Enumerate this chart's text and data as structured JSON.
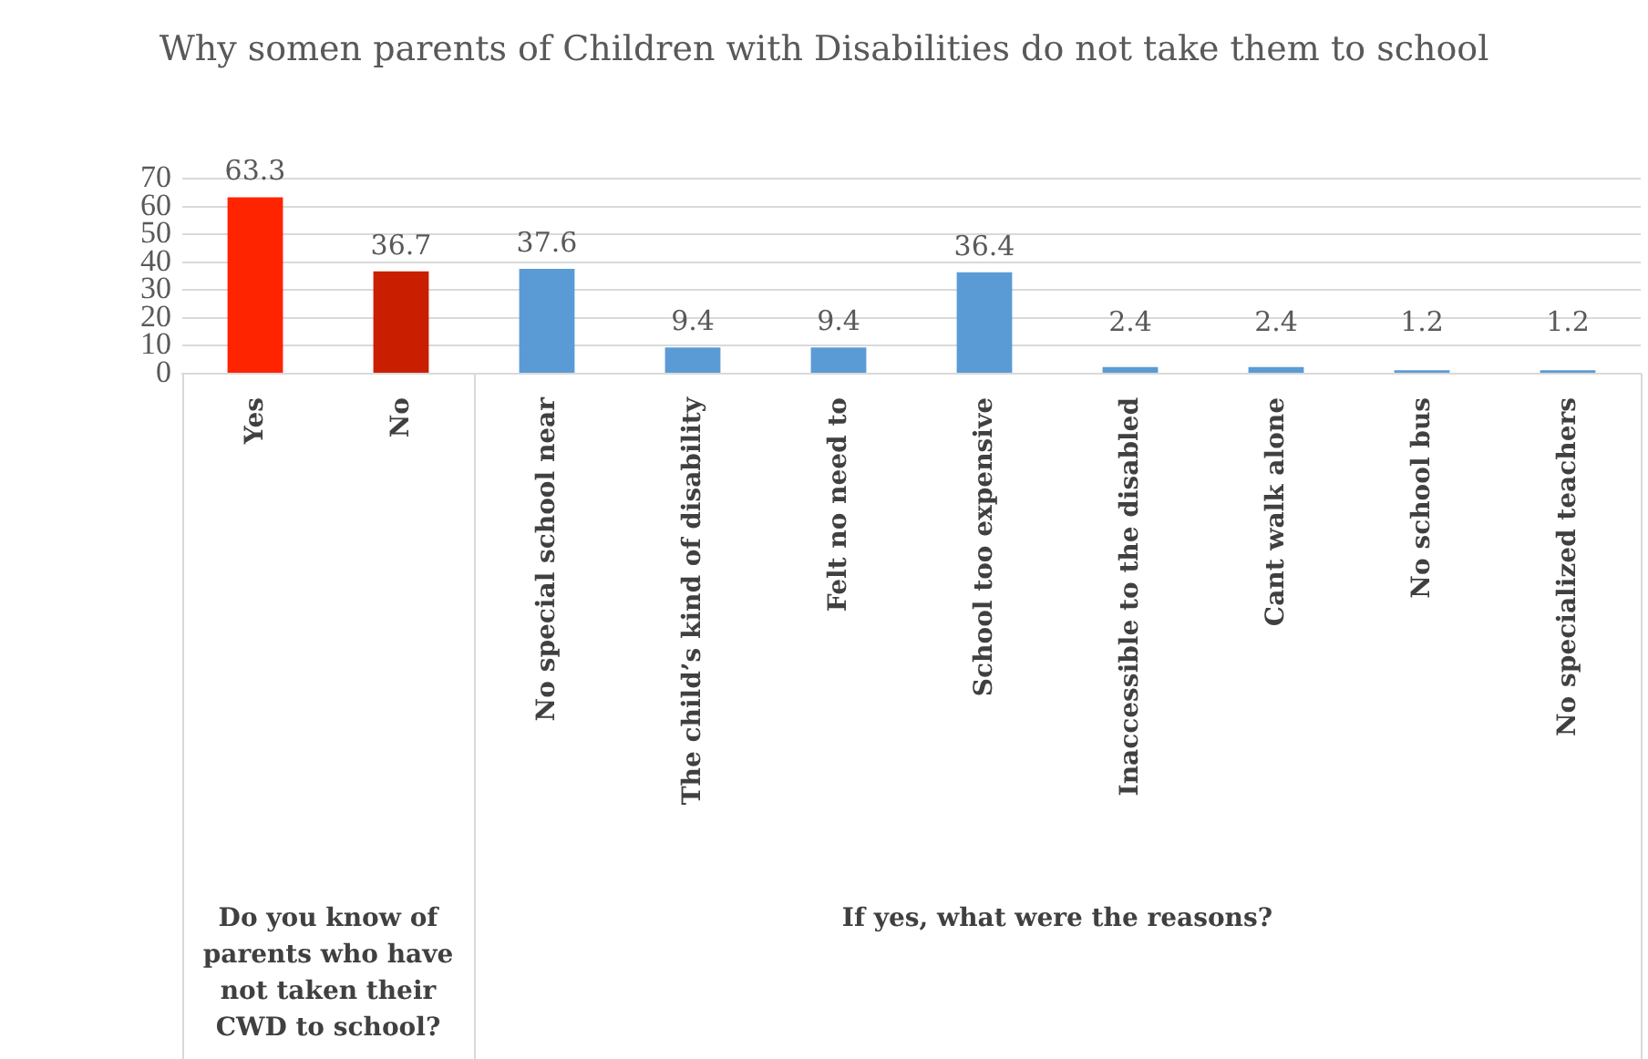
{
  "chart_data": {
    "type": "bar",
    "title": "Why somen parents of Children with Disabilities do not take them to school",
    "categories": [
      "Yes",
      "No",
      "No special school near",
      "The child’s kind of disability",
      "Felt no need to",
      "School too expensive",
      "Inaccessible to the disabled",
      "Cant walk alone",
      "No school bus",
      "No specialized teachers"
    ],
    "values": [
      63.3,
      36.7,
      37.6,
      9.4,
      9.4,
      36.4,
      2.4,
      2.4,
      1.2,
      1.2
    ],
    "colors": [
      "#ff2400",
      "#c91f00",
      "#5b9bd5",
      "#5b9bd5",
      "#5b9bd5",
      "#5b9bd5",
      "#5b9bd5",
      "#5b9bd5",
      "#5b9bd5",
      "#5b9bd5"
    ],
    "ylim": [
      0,
      70
    ],
    "yticks": [
      0,
      10,
      20,
      30,
      40,
      50,
      60,
      70
    ],
    "grid": "y",
    "data_labels": true,
    "annotations": [
      "Do you know of parents who have not taken their CWD to school?",
      "If yes, what were the reasons?"
    ]
  }
}
